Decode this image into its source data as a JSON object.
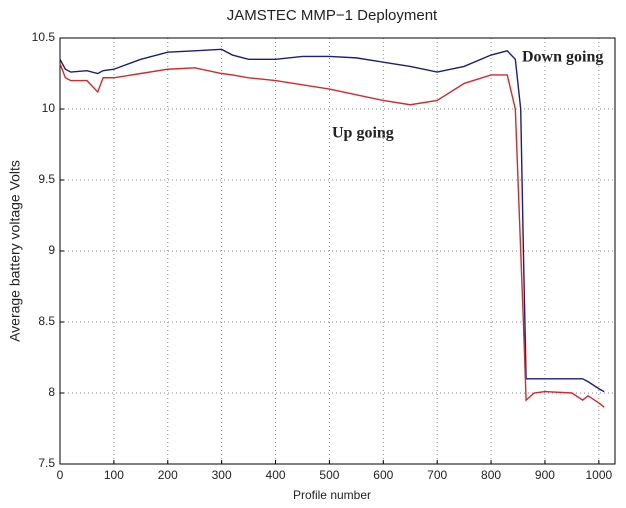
{
  "chart_data": {
    "type": "line",
    "title": "JAMSTEC MMP−1 Deployment",
    "x_label": "Profile number",
    "y_label": "Average battery voltage Volts",
    "x": [
      0,
      10,
      20,
      50,
      70,
      80,
      100,
      150,
      200,
      250,
      300,
      320,
      350,
      400,
      450,
      500,
      550,
      600,
      650,
      700,
      750,
      800,
      830,
      845,
      855,
      860,
      865,
      880,
      900,
      950,
      970,
      980,
      1000,
      1010
    ],
    "series": [
      {
        "name": "Down going",
        "color": "#1c1f78",
        "values": [
          10.35,
          10.28,
          10.26,
          10.27,
          10.25,
          10.27,
          10.28,
          10.35,
          10.4,
          10.41,
          10.42,
          10.38,
          10.35,
          10.35,
          10.37,
          10.37,
          10.36,
          10.33,
          10.3,
          10.26,
          10.3,
          10.38,
          10.41,
          10.35,
          10.0,
          9.0,
          8.1,
          8.1,
          8.1,
          8.1,
          8.1,
          8.08,
          8.03,
          8.01
        ]
      },
      {
        "name": "Up going",
        "color": "#d42a2a",
        "values": [
          10.32,
          10.22,
          10.2,
          10.2,
          10.12,
          10.22,
          10.22,
          10.25,
          10.28,
          10.29,
          10.25,
          10.24,
          10.22,
          10.2,
          10.17,
          10.14,
          10.1,
          10.06,
          10.03,
          10.06,
          10.18,
          10.24,
          10.24,
          10.0,
          9.0,
          8.5,
          7.95,
          8.0,
          8.01,
          8.0,
          7.95,
          7.98,
          7.93,
          7.9
        ]
      }
    ],
    "xlim": [
      0,
      1030
    ],
    "xticks": [
      0,
      100,
      200,
      300,
      400,
      500,
      600,
      700,
      800,
      900,
      1000
    ],
    "ylim": [
      7.5,
      10.5
    ],
    "yticks": [
      7.5,
      8,
      8.5,
      9,
      9.5,
      10,
      10.5
    ],
    "grid": true
  }
}
